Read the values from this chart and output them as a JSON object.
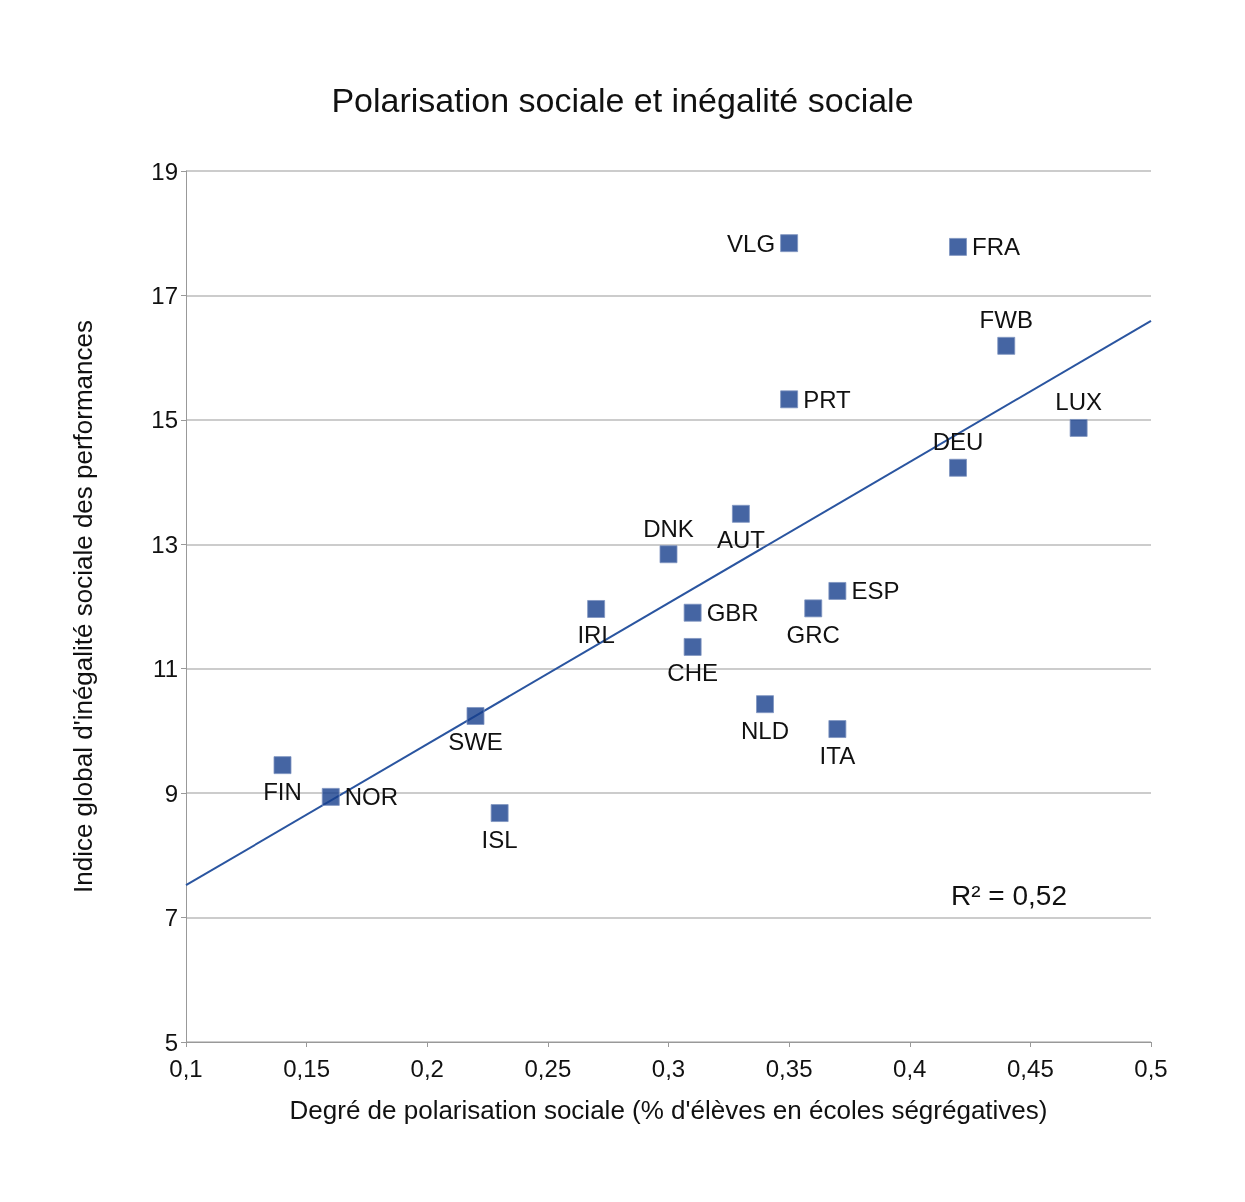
{
  "chart_data": {
    "type": "scatter",
    "title": "Polarisation sociale et inégalité sociale",
    "xlabel": "Degré de polarisation sociale (% d'élèves en écoles ségrégatives)",
    "ylabel": "Indice global d'inégalité sociale des performances",
    "x": [
      0.35,
      0.42,
      0.44,
      0.35,
      0.47,
      0.42,
      0.33,
      0.3,
      0.37,
      0.27,
      0.36,
      0.31,
      0.31,
      0.34,
      0.37,
      0.22,
      0.14,
      0.16,
      0.23
    ],
    "series": [
      {
        "color": "#173f8c",
        "values": [
          17.84,
          17.78,
          16.19,
          15.33,
          14.87,
          14.23,
          13.49,
          12.84,
          12.25,
          11.96,
          11.97,
          11.9,
          11.35,
          10.43,
          10.03,
          10.24,
          9.45,
          8.94,
          8.68
        ]
      },
      {
        "type": "line",
        "marker": "none",
        "color": "#2a55a0",
        "x": [
          0.1,
          0.5
        ],
        "values": [
          7.52,
          16.59
        ]
      }
    ],
    "annotations": [
      {
        "text": "VLG",
        "x": 0.35,
        "y": 17.84
      },
      {
        "text": "FRA",
        "x": 0.42,
        "y": 17.78
      },
      {
        "text": "FWB",
        "x": 0.44,
        "y": 16.19
      },
      {
        "text": "PRT",
        "x": 0.35,
        "y": 15.33
      },
      {
        "text": "LUX",
        "x": 0.47,
        "y": 14.87
      },
      {
        "text": "DEU",
        "x": 0.42,
        "y": 14.23
      },
      {
        "text": "AUT",
        "x": 0.33,
        "y": 13.49
      },
      {
        "text": "DNK",
        "x": 0.3,
        "y": 12.84
      },
      {
        "text": "ESP",
        "x": 0.37,
        "y": 12.25
      },
      {
        "text": "IRL",
        "x": 0.27,
        "y": 11.96
      },
      {
        "text": "GRC",
        "x": 0.36,
        "y": 11.97
      },
      {
        "text": "GBR",
        "x": 0.31,
        "y": 11.9
      },
      {
        "text": "CHE",
        "x": 0.31,
        "y": 11.35
      },
      {
        "text": "NLD",
        "x": 0.34,
        "y": 10.43
      },
      {
        "text": "ITA",
        "x": 0.37,
        "y": 10.03
      },
      {
        "text": "SWE",
        "x": 0.22,
        "y": 10.24
      },
      {
        "text": "FIN",
        "x": 0.14,
        "y": 9.45
      },
      {
        "text": "NOR",
        "x": 0.16,
        "y": 8.94
      },
      {
        "text": "ISL",
        "x": 0.23,
        "y": 8.68
      },
      "R² = 0,52"
    ],
    "xlim": [
      0.1,
      0.5
    ],
    "xticks": [
      {
        "value": 0.1,
        "label": "0,1"
      },
      {
        "value": 0.15,
        "label": "0,15"
      },
      {
        "value": 0.2,
        "label": "0,2"
      },
      {
        "value": 0.25,
        "label": "0,25"
      },
      {
        "value": 0.3,
        "label": "0,3"
      },
      {
        "value": 0.35,
        "label": "0,35"
      },
      {
        "value": 0.4,
        "label": "0,4"
      },
      {
        "value": 0.45,
        "label": "0,45"
      },
      {
        "value": 0.5,
        "label": "0,5"
      }
    ],
    "ylim": [
      5,
      19
    ],
    "yticks": [
      5,
      7,
      9,
      11,
      13,
      15,
      17,
      19
    ],
    "grid": "y",
    "marker": "square",
    "line_style": "solid"
  }
}
